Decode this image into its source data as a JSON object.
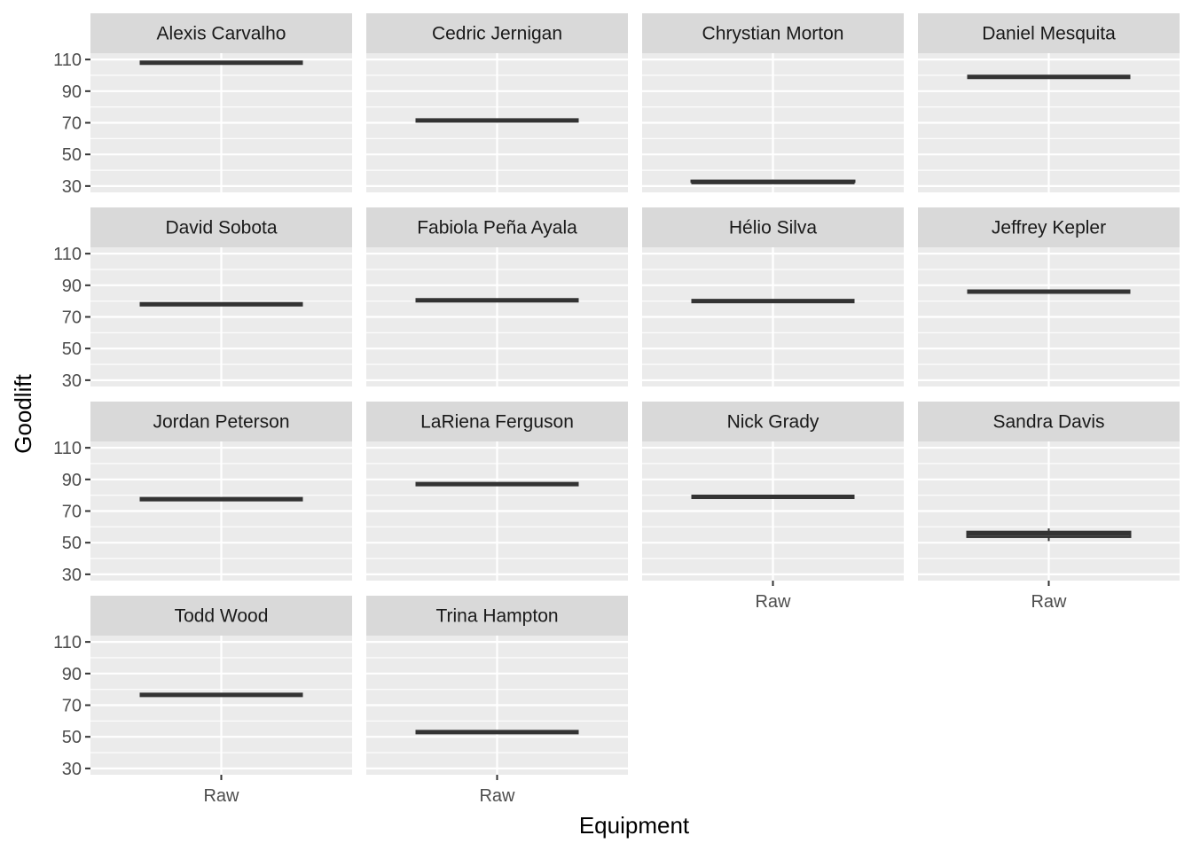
{
  "chart_data": {
    "type": "boxplot",
    "facet_by": "lifter",
    "xlabel": "Equipment",
    "ylabel": "Goodlift",
    "x_categories": [
      "Raw"
    ],
    "y_ticks": [
      30,
      50,
      70,
      90,
      110
    ],
    "ylim": [
      26,
      114
    ],
    "grid": true,
    "facet_layout": {
      "columns": 4,
      "rows": 4
    },
    "colors": {
      "panel_background": "#ebebeb",
      "strip_background": "#d9d9d9",
      "box": "#333333",
      "grid": "#ffffff"
    },
    "panels": [
      {
        "name": "Alexis Carvalho",
        "box": {
          "min": 108,
          "q1": 108,
          "median": 108,
          "q3": 108,
          "max": 108
        }
      },
      {
        "name": "Cedric Jernigan",
        "box": {
          "min": 71.5,
          "q1": 71.5,
          "median": 71.5,
          "q3": 71.5,
          "max": 71.5
        }
      },
      {
        "name": "Chrystian Morton",
        "box": {
          "min": 32.5,
          "q1": 32.5,
          "median": 32.5,
          "q3": 33.5,
          "max": 34
        }
      },
      {
        "name": "Daniel Mesquita",
        "box": {
          "min": 99,
          "q1": 99,
          "median": 99,
          "q3": 99,
          "max": 99
        }
      },
      {
        "name": "David Sobota",
        "box": {
          "min": 78,
          "q1": 78,
          "median": 78,
          "q3": 78,
          "max": 78
        }
      },
      {
        "name": "Fabiola Peña Ayala",
        "box": {
          "min": 80.5,
          "q1": 80.5,
          "median": 80.5,
          "q3": 80.5,
          "max": 80.5
        }
      },
      {
        "name": "Hélio Silva",
        "box": {
          "min": 80,
          "q1": 80,
          "median": 80,
          "q3": 80,
          "max": 80
        }
      },
      {
        "name": "Jeffrey Kepler",
        "box": {
          "min": 86,
          "q1": 86,
          "median": 86,
          "q3": 86,
          "max": 86
        }
      },
      {
        "name": "Jordan Peterson",
        "box": {
          "min": 77.5,
          "q1": 77.5,
          "median": 77.5,
          "q3": 77.5,
          "max": 77.5
        }
      },
      {
        "name": "LaRiena Ferguson",
        "box": {
          "min": 87,
          "q1": 87,
          "median": 87,
          "q3": 87,
          "max": 87
        }
      },
      {
        "name": "Nick Grady",
        "box": {
          "min": 79,
          "q1": 79,
          "median": 79,
          "q3": 79,
          "max": 79
        }
      },
      {
        "name": "Sandra Davis",
        "box": {
          "min": 51,
          "q1": 53.5,
          "median": 55.5,
          "q3": 57,
          "max": 59
        }
      },
      {
        "name": "Todd Wood",
        "box": {
          "min": 76.5,
          "q1": 76.5,
          "median": 76.5,
          "q3": 76.5,
          "max": 76.5
        }
      },
      {
        "name": "Trina Hampton",
        "box": {
          "min": 53,
          "q1": 53,
          "median": 53,
          "q3": 53,
          "max": 53
        }
      }
    ]
  }
}
